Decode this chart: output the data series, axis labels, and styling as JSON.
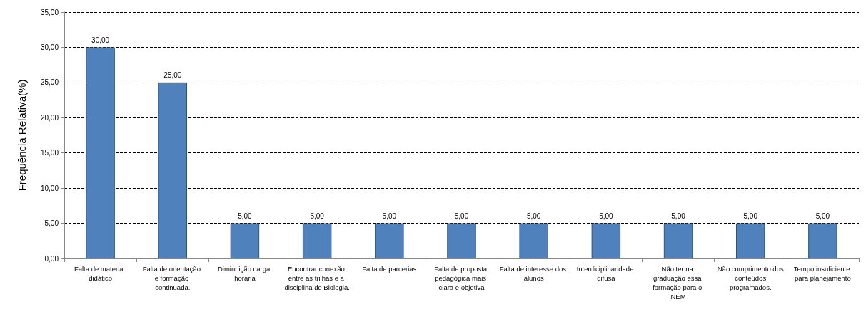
{
  "chart_data": {
    "type": "bar",
    "ylabel": "Frequência Relativa(%)",
    "categories": [
      "Falta de material didático",
      "Falta de orientação e formação continuada.",
      "Diminuição carga horária",
      "Encontrar conexão entre as trilhas e a disciplina de Biologia.",
      "Falta de parcerias",
      "Falta de proposta pedagógica mais clara e objetiva",
      "Falta de interesse dos alunos",
      "Interdiciplinaridade difusa",
      "Não ter na graduação essa formação para o NEM",
      "Não cumprimento dos conteúdos programados.",
      "Tempo insuficiente para planejamento"
    ],
    "values": [
      30,
      25,
      5,
      5,
      5,
      5,
      5,
      5,
      5,
      5,
      5
    ],
    "value_labels": [
      "30,00",
      "25,00",
      "5,00",
      "5,00",
      "5,00",
      "5,00",
      "5,00",
      "5,00",
      "5,00",
      "5,00",
      "5,00"
    ],
    "color": "#4f81bd",
    "ylim": [
      0,
      35
    ],
    "yticks": [
      {
        "value": 0,
        "label": "0,00"
      },
      {
        "value": 5,
        "label": "5,00"
      },
      {
        "value": 10,
        "label": "10,00"
      },
      {
        "value": 15,
        "label": "15,00"
      },
      {
        "value": 20,
        "label": "20,00"
      },
      {
        "value": 25,
        "label": "25,00"
      },
      {
        "value": 30,
        "label": "30,00"
      },
      {
        "value": 35,
        "label": "35,00"
      }
    ],
    "grid": "y"
  }
}
